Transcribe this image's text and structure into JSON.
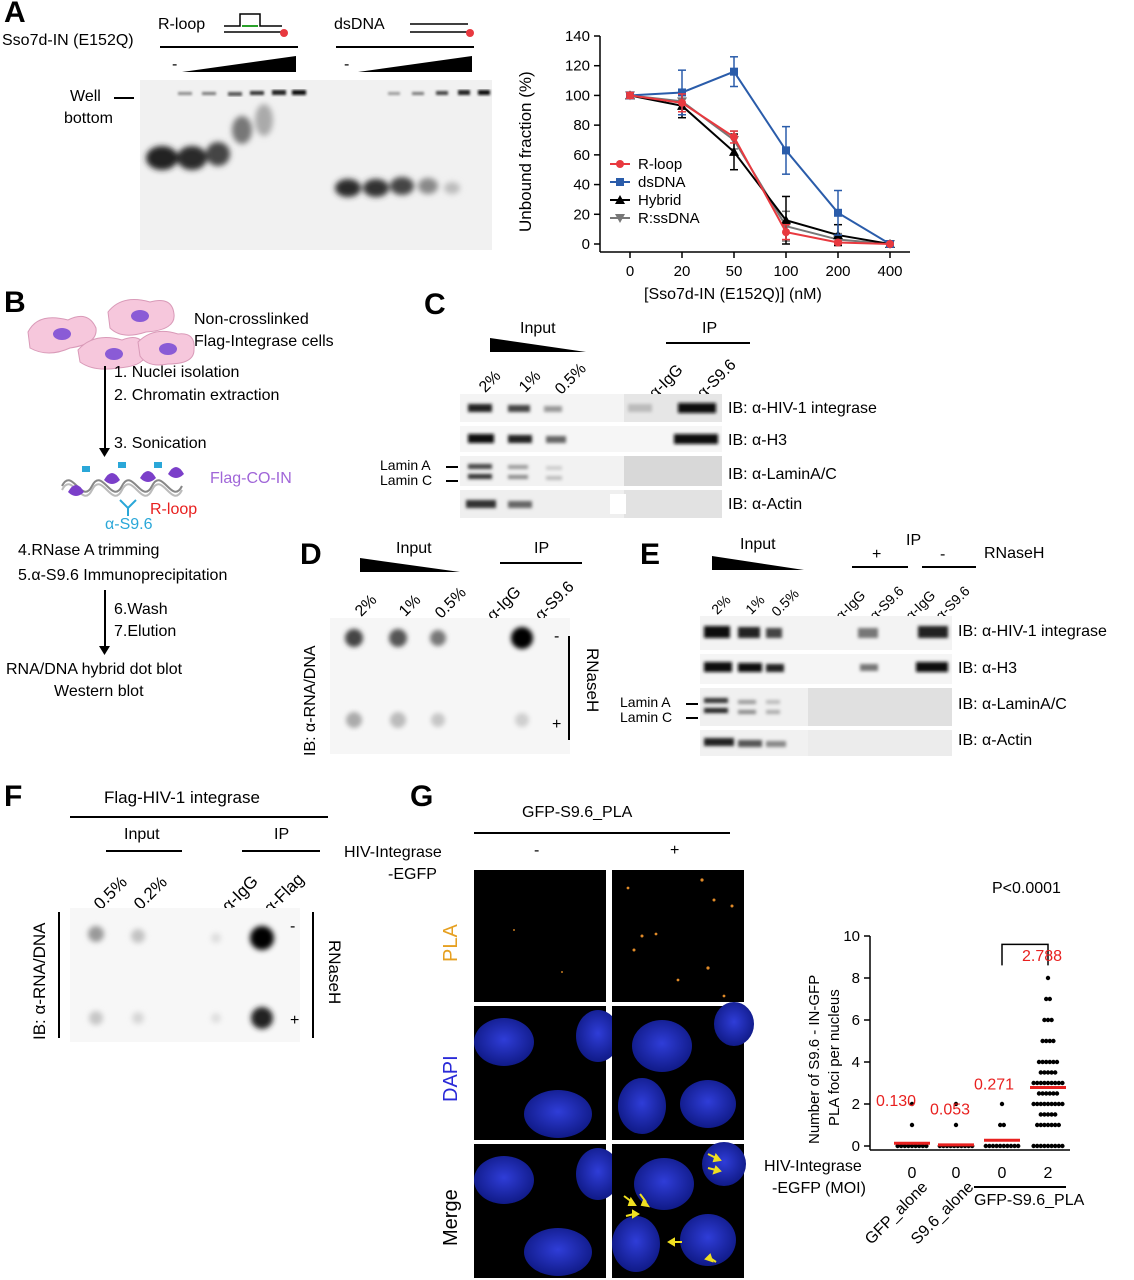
{
  "panels": {
    "A": {
      "letter": "A",
      "gel": {
        "rloop_label": "R-loop",
        "dsdna_label": "dsDNA",
        "protein_label": "Sso7d-IN (E152Q)",
        "minus": "-",
        "well": "Well",
        "bottom": "bottom"
      },
      "chart": {
        "ylabel": "Unbound fraction (%)",
        "xlabel": "[Sso7d-IN (E152Q)] (nM)"
      }
    },
    "B": {
      "letter": "B",
      "cells_line1": "Non-crosslinked",
      "cells_line2": "Flag-Integrase cells",
      "steps1": [
        "1. Nuclei isolation",
        "2. Chromatin extraction",
        "3. Sonication"
      ],
      "flag_co_in": "Flag-CO-IN",
      "rloop": "R-loop",
      "s96": "α-S9.6",
      "steps2": [
        "4.RNase A trimming",
        "5.α-S9.6 Immunoprecipitation"
      ],
      "steps3": [
        "6.Wash",
        "7.Elution"
      ],
      "out1": "RNA/DNA hybrid dot blot",
      "out2": "Western blot"
    },
    "C": {
      "letter": "C",
      "input": "Input",
      "ip": "IP",
      "lanes": [
        "2%",
        "1%",
        "0.5%",
        "α-IgG",
        "α-S9.6"
      ],
      "ib": [
        "IB: α-HIV-1 integrase",
        "IB: α-H3",
        "IB: α-LaminA/C",
        "IB: α-Actin"
      ],
      "lamin_a": "Lamin A",
      "lamin_c": "Lamin C"
    },
    "D": {
      "letter": "D",
      "input": "Input",
      "ip": "IP",
      "lanes": [
        "2%",
        "1%",
        "0.5%",
        "α-IgG",
        "α-S9.6"
      ],
      "ylabel": "IB: α-RNA/DNA",
      "minus": "-",
      "plus": "+",
      "rnaseh": "RNaseH"
    },
    "E": {
      "letter": "E",
      "input": "Input",
      "ip": "IP",
      "plus": "+",
      "minus": "-",
      "rnaseh": "RNaseH",
      "lanes": [
        "2%",
        "1%",
        "0.5%",
        "α-IgG",
        "α-S9.6",
        "α-IgG",
        "α-S9.6"
      ],
      "ib": [
        "IB: α-HIV-1 integrase",
        "IB: α-H3",
        "IB: α-LaminA/C",
        "IB: α-Actin"
      ],
      "lamin_a": "Lamin A",
      "lamin_c": "Lamin C"
    },
    "F": {
      "letter": "F",
      "title": "Flag-HIV-1 integrase",
      "input": "Input",
      "ip": "IP",
      "lanes": [
        "0.5%",
        "0.2%",
        "α-IgG",
        "α-Flag"
      ],
      "ylabel": "IB: α-RNA/DNA",
      "minus": "-",
      "plus": "+",
      "rnaseh": "RNaseH"
    },
    "G": {
      "letter": "G",
      "title": "GFP-S9.6_PLA",
      "hiv_line1": "HIV-Integrase",
      "hiv_line2": "-EGFP",
      "minus": "-",
      "plus": "+",
      "rows": [
        "PLA",
        "DAPI",
        "Merge"
      ],
      "chart": {
        "ylabel_line1": "Number of S9.6 - IN-GFP",
        "ylabel_line2": "PLA foci per nucleus",
        "pvalue": "P<0.0001",
        "xlab_line1": "HIV-Integrase",
        "xlab_line2": "-EGFP (MOI)",
        "group_label": "GFP-S9.6_PLA"
      }
    }
  },
  "chart_data": [
    {
      "type": "line",
      "x": [
        "0",
        "20",
        "50",
        "100",
        "200",
        "400"
      ],
      "xlabel": "[Sso7d-IN (E152Q)] (nM)",
      "ylabel": "Unbound fraction (%)",
      "ylim": [
        0,
        140
      ],
      "yticks": [
        0,
        20,
        40,
        60,
        80,
        100,
        120,
        140
      ],
      "legend_position": "center-left",
      "series": [
        {
          "name": "R-loop",
          "color": "#e8393f",
          "marker": "circle",
          "values": [
            100,
            95,
            72,
            8,
            1,
            0
          ],
          "err": [
            2,
            6,
            4,
            5,
            1,
            0
          ]
        },
        {
          "name": "dsDNA",
          "color": "#2a5caa",
          "marker": "square",
          "values": [
            100,
            102,
            116,
            63,
            21,
            0
          ],
          "err": [
            2,
            15,
            10,
            16,
            15,
            0
          ]
        },
        {
          "name": "Hybrid",
          "color": "#000000",
          "marker": "triangle",
          "values": [
            100,
            93,
            62,
            16,
            6,
            0
          ],
          "err": [
            2,
            8,
            12,
            16,
            7,
            0
          ]
        },
        {
          "name": "R:ssDNA",
          "color": "#777777",
          "marker": "triangle-down",
          "values": [
            100,
            96,
            70,
            12,
            3,
            0
          ],
          "err": [
            2,
            5,
            6,
            10,
            4,
            0
          ]
        }
      ]
    },
    {
      "type": "scatter",
      "categories": [
        "GFP_alone",
        "S9.6_alone",
        "0",
        "2"
      ],
      "moi": [
        "0",
        "0",
        "0",
        "2"
      ],
      "ylim": [
        0,
        10
      ],
      "yticks": [
        0,
        2,
        4,
        6,
        8,
        10
      ],
      "means": [
        0.13,
        0.053,
        0.271,
        2.788
      ],
      "mean_labels": [
        "0.130",
        "0.053",
        "0.271",
        "2.788"
      ],
      "mean_color": "#e8201f",
      "max_values": [
        2,
        2,
        2,
        8
      ]
    }
  ]
}
